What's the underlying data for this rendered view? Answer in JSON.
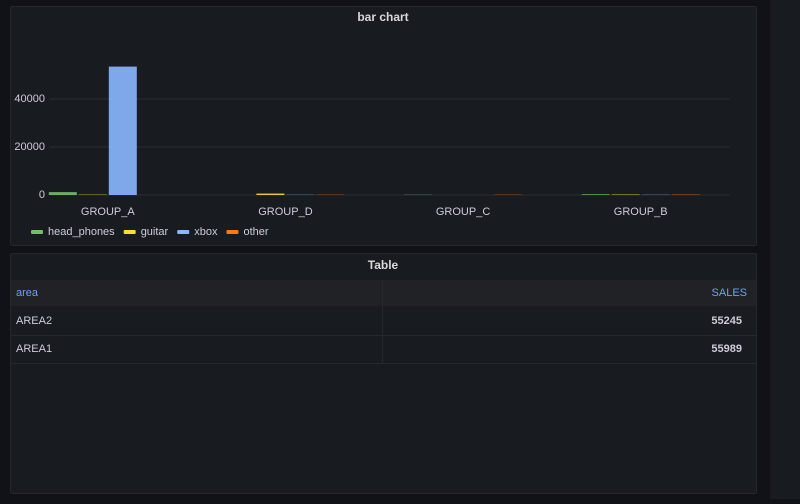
{
  "chart_data": {
    "type": "bar",
    "title": "bar chart",
    "categories": [
      "GROUP_A",
      "GROUP_D",
      "GROUP_C",
      "GROUP_B"
    ],
    "series": [
      {
        "name": "head_phones",
        "color": "#73bf69",
        "values": [
          1200,
          0,
          100,
          300
        ]
      },
      {
        "name": "guitar",
        "color": "#fade2a",
        "values": [
          150,
          600,
          0,
          200
        ]
      },
      {
        "name": "xbox",
        "color": "#8ab8ff",
        "values": [
          53500,
          100,
          0,
          100
        ]
      },
      {
        "name": "other",
        "color": "#ff780a",
        "values": [
          0,
          100,
          100,
          150
        ]
      }
    ],
    "ylim": [
      0,
      55000
    ],
    "yticks": [
      0,
      20000,
      40000
    ],
    "grid": true,
    "legend": "bottom"
  },
  "table": {
    "title": "Table",
    "columns": [
      "area",
      "SALES"
    ],
    "rows": [
      [
        "AREA2",
        55245
      ],
      [
        "AREA1",
        55989
      ]
    ]
  }
}
